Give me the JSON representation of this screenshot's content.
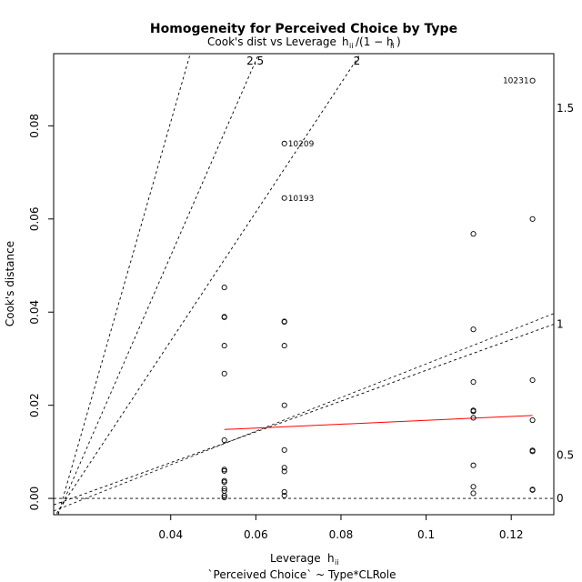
{
  "chart_data": {
    "type": "scatter",
    "title": "Homogeneity for Perceived Choice by Type",
    "subtitle": {
      "text": "Cook's dist vs Leverage",
      "formula_lead": "h",
      "formula_sub": "ii",
      "formula_mid": "/(1 − h",
      "formula_sub2": "ii",
      "formula_end": ")"
    },
    "xlabel": {
      "text": "Leverage",
      "symbol": "h",
      "symbol_sub": "ii"
    },
    "caption": "`Perceived Choice` ~ Type*CLRole",
    "ylabel": "Cook's distance",
    "xlim": [
      0.0125,
      0.13
    ],
    "ylim": [
      -0.0035,
      0.0955
    ],
    "x_ticks": [
      {
        "value": 0.04,
        "label": "0.04"
      },
      {
        "value": 0.06,
        "label": "0.06"
      },
      {
        "value": 0.08,
        "label": "0.08"
      },
      {
        "value": 0.1,
        "label": "0.1"
      },
      {
        "value": 0.12,
        "label": "0.12"
      }
    ],
    "y_ticks": [
      {
        "value": 0.0,
        "label": "0.00"
      },
      {
        "value": 0.02,
        "label": "0.02"
      },
      {
        "value": 0.04,
        "label": "0.04"
      },
      {
        "value": 0.06,
        "label": "0.06"
      },
      {
        "value": 0.08,
        "label": "0.08"
      }
    ],
    "grid": false,
    "points": [
      {
        "x": 0.0526,
        "y": 0.0453
      },
      {
        "x": 0.0526,
        "y": 0.039
      },
      {
        "x": 0.0526,
        "y": 0.0389
      },
      {
        "x": 0.0526,
        "y": 0.0328
      },
      {
        "x": 0.0526,
        "y": 0.0268
      },
      {
        "x": 0.0526,
        "y": 0.0125
      },
      {
        "x": 0.0526,
        "y": 0.0062
      },
      {
        "x": 0.0526,
        "y": 0.0059
      },
      {
        "x": 0.0526,
        "y": 0.0038
      },
      {
        "x": 0.0526,
        "y": 0.0035
      },
      {
        "x": 0.0526,
        "y": 0.0021
      },
      {
        "x": 0.0526,
        "y": 0.0016
      },
      {
        "x": 0.0526,
        "y": 0.0006
      },
      {
        "x": 0.0526,
        "y": 0.0002
      },
      {
        "x": 0.0667,
        "y": 0.0762,
        "label": "10209"
      },
      {
        "x": 0.0667,
        "y": 0.0645,
        "label": "10193"
      },
      {
        "x": 0.0667,
        "y": 0.038
      },
      {
        "x": 0.0667,
        "y": 0.0379
      },
      {
        "x": 0.0667,
        "y": 0.0328
      },
      {
        "x": 0.0667,
        "y": 0.02
      },
      {
        "x": 0.0667,
        "y": 0.0104
      },
      {
        "x": 0.0667,
        "y": 0.0066
      },
      {
        "x": 0.0667,
        "y": 0.0058
      },
      {
        "x": 0.0667,
        "y": 0.0014
      },
      {
        "x": 0.0667,
        "y": 0.0006
      },
      {
        "x": 0.1111,
        "y": 0.0568
      },
      {
        "x": 0.1111,
        "y": 0.0363
      },
      {
        "x": 0.1111,
        "y": 0.025
      },
      {
        "x": 0.1111,
        "y": 0.0189
      },
      {
        "x": 0.1111,
        "y": 0.0187
      },
      {
        "x": 0.1111,
        "y": 0.0173
      },
      {
        "x": 0.1111,
        "y": 0.0071
      },
      {
        "x": 0.1111,
        "y": 0.0025
      },
      {
        "x": 0.1111,
        "y": 0.0011
      },
      {
        "x": 0.125,
        "y": 0.0897,
        "label": "10231"
      },
      {
        "x": 0.125,
        "y": 0.06
      },
      {
        "x": 0.125,
        "y": 0.0254
      },
      {
        "x": 0.125,
        "y": 0.0168
      },
      {
        "x": 0.125,
        "y": 0.0103
      },
      {
        "x": 0.125,
        "y": 0.0101
      },
      {
        "x": 0.125,
        "y": 0.0019
      },
      {
        "x": 0.125,
        "y": 0.0018
      }
    ],
    "smooth_line": {
      "color": "#ff0000",
      "x": [
        0.0526,
        0.125
      ],
      "y": [
        0.0148,
        0.0178
      ]
    },
    "contours": [
      {
        "label": "0",
        "slope": 0,
        "intercept": 0
      },
      {
        "label": "0.5",
        "slope": 0.00302,
        "intercept": -4.32e-05
      },
      {
        "label": "1",
        "slope": 0.00302,
        "intercept": -4.32e-05
      },
      {
        "label": "1.5",
        "slope": 0.00302,
        "intercept": -4.32e-05
      },
      {
        "label": "2",
        "slope": 0.00302,
        "intercept": -4.32e-05
      },
      {
        "label": "2.5",
        "slope": 0.00302,
        "intercept": -4.32e-05
      }
    ],
    "contour_lines": [
      {
        "label": "",
        "x": [
          0.0125,
          0.0208
        ],
        "y": [
          -0.0027,
          0.0
        ],
        "extend": [
          0.13,
          0.0397
        ]
      },
      {
        "label": "1",
        "anchor": "right",
        "x0": 0.0125,
        "y0": -0.0014,
        "x1": 0.13,
        "y1": 0.0374
      },
      {
        "label": "2",
        "anchor": "top",
        "x0": 0.0125,
        "y0": -0.0042,
        "x1": 0.0846,
        "y1": 0.0955
      },
      {
        "label": "2.5",
        "anchor": "top",
        "x0": 0.0125,
        "y0": -0.0055,
        "x1": 0.0607,
        "y1": 0.0955
      },
      {
        "label": "",
        "anchor": "top",
        "x0": 0.0125,
        "y0": -0.0069,
        "x1": 0.0446,
        "y1": 0.0955
      }
    ],
    "right_labels": [
      {
        "label": "1.5",
        "y": 0.0838
      },
      {
        "label": "1",
        "y": 0.0374
      },
      {
        "label": "0.5",
        "y": 0.0093
      },
      {
        "label": "0",
        "y": 0.0
      }
    ],
    "zero_line": 0.0
  }
}
